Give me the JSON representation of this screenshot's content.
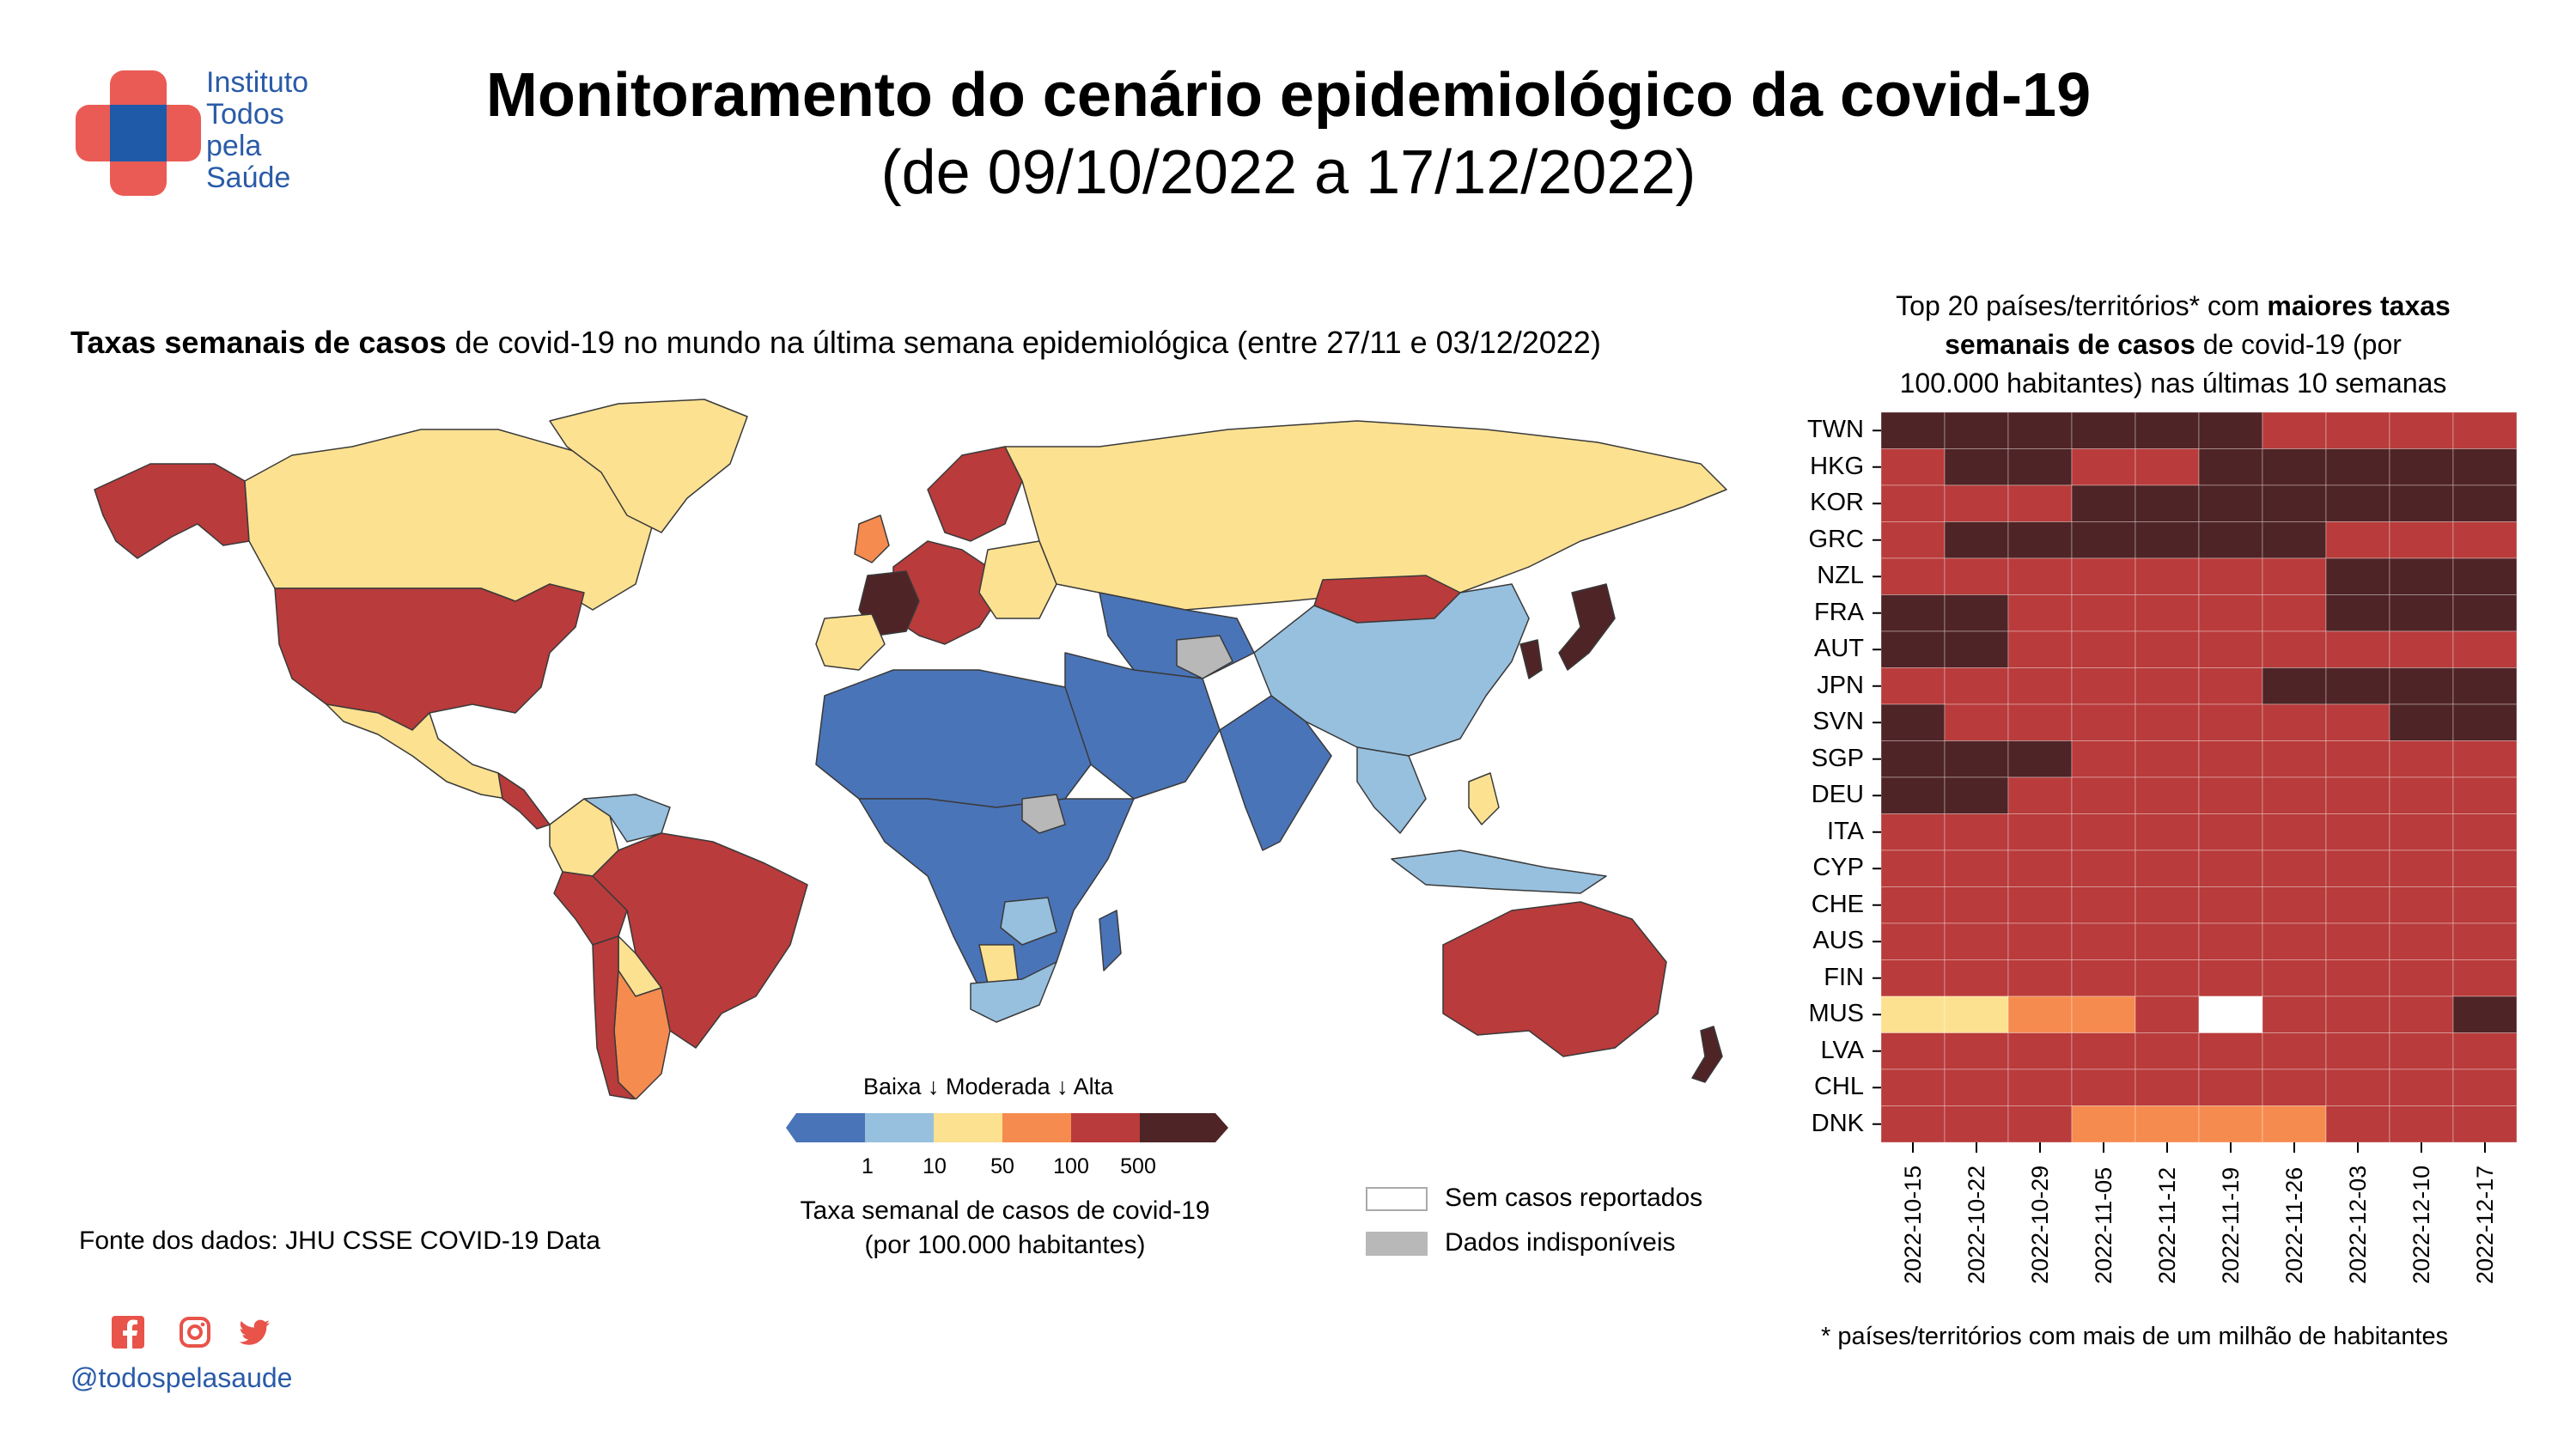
{
  "brand": {
    "logo_lines": [
      "Instituto",
      "Todos",
      "pela",
      "Saúde"
    ],
    "handle": "@todospelasaude",
    "social_icons": [
      "facebook-icon",
      "instagram-icon",
      "twitter-icon"
    ],
    "colors": {
      "logo_blue": "#1e5aa8",
      "logo_red": "#ea5b55",
      "handle": "#2a5ba8",
      "social": "#e8534a"
    }
  },
  "header": {
    "title": "Monitoramento do cenário epidemiológico da covid-19",
    "subtitle": "(de 09/10/2022 a 17/12/2022)"
  },
  "map": {
    "title_bold": "Taxas semanais de casos",
    "title_rest": " de covid-19 no mundo na última semana epidemiológica (entre 27/11 e 03/12/2022)"
  },
  "legend": {
    "categories": "Baixa ↓ Moderada ↓ Alta",
    "ticks": [
      "1",
      "10",
      "50",
      "100",
      "500"
    ],
    "caption_line1": "Taxa semanal de casos de covid-19",
    "caption_line2": "(por 100.000 habitantes)",
    "colors": [
      "#4a74b8",
      "#97c0df",
      "#fce191",
      "#f68b4f",
      "#b93b3b",
      "#4f2426"
    ],
    "no_cases": "Sem casos reportados",
    "unavailable": "Dados indisponíveis",
    "no_cases_color": "#ffffff",
    "unavailable_color": "#b8b8b8"
  },
  "source": "Fonte dos dados: JHU CSSE COVID-19 Data",
  "heatmap": {
    "title_l1_pre": "Top 20 países/territórios* com ",
    "title_l1_bold": "maiores taxas",
    "title_l2_bold": "semanais de casos",
    "title_l2_rest": " de covid-19 (por",
    "title_l3": "100.000 habitantes) nas últimas 10 semanas",
    "footnote": "* países/territórios com mais de um milhão de habitantes"
  },
  "chart_data": {
    "type": "heatmap",
    "x": [
      "2022-10-15",
      "2022-10-22",
      "2022-10-29",
      "2022-11-05",
      "2022-11-12",
      "2022-11-19",
      "2022-11-26",
      "2022-12-03",
      "2022-12-10",
      "2022-12-17"
    ],
    "y": [
      "TWN",
      "HKG",
      "KOR",
      "GRC",
      "NZL",
      "FRA",
      "AUT",
      "JPN",
      "SVN",
      "SGP",
      "DEU",
      "ITA",
      "CYP",
      "CHE",
      "AUS",
      "FIN",
      "MUS",
      "LVA",
      "CHL",
      "DNK"
    ],
    "category_scale": [
      "none",
      "1-10",
      "10-50",
      "50-100",
      "100-500",
      "500+"
    ],
    "category_colors": {
      "none": "#ffffff",
      "50-100": "#fce191",
      "100-500": "#f68b4f",
      "500+x": "",
      "500+": "#4f2426",
      "high": "#b93b3b"
    },
    "values": [
      [
        "500+",
        "500+",
        "500+",
        "500+",
        "500+",
        "500+",
        "100-500",
        "100-500",
        "100-500",
        "100-500"
      ],
      [
        "100-500",
        "500+",
        "500+",
        "100-500",
        "100-500",
        "500+",
        "500+",
        "500+",
        "500+",
        "500+"
      ],
      [
        "100-500",
        "100-500",
        "100-500",
        "500+",
        "500+",
        "500+",
        "500+",
        "500+",
        "500+",
        "500+"
      ],
      [
        "100-500",
        "500+",
        "500+",
        "500+",
        "500+",
        "500+",
        "500+",
        "100-500",
        "100-500",
        "100-500"
      ],
      [
        "100-500",
        "100-500",
        "100-500",
        "100-500",
        "100-500",
        "100-500",
        "100-500",
        "500+",
        "500+",
        "500+"
      ],
      [
        "500+",
        "500+",
        "100-500",
        "100-500",
        "100-500",
        "100-500",
        "100-500",
        "500+",
        "500+",
        "500+"
      ],
      [
        "500+",
        "500+",
        "100-500",
        "100-500",
        "100-500",
        "100-500",
        "100-500",
        "100-500",
        "100-500",
        "100-500"
      ],
      [
        "100-500",
        "100-500",
        "100-500",
        "100-500",
        "100-500",
        "100-500",
        "500+",
        "500+",
        "500+",
        "500+"
      ],
      [
        "500+",
        "100-500",
        "100-500",
        "100-500",
        "100-500",
        "100-500",
        "100-500",
        "100-500",
        "500+",
        "500+"
      ],
      [
        "500+",
        "500+",
        "500+",
        "100-500",
        "100-500",
        "100-500",
        "100-500",
        "100-500",
        "100-500",
        "100-500"
      ],
      [
        "500+",
        "500+",
        "100-500",
        "100-500",
        "100-500",
        "100-500",
        "100-500",
        "100-500",
        "100-500",
        "100-500"
      ],
      [
        "100-500",
        "100-500",
        "100-500",
        "100-500",
        "100-500",
        "100-500",
        "100-500",
        "100-500",
        "100-500",
        "100-500"
      ],
      [
        "100-500",
        "100-500",
        "100-500",
        "100-500",
        "100-500",
        "100-500",
        "100-500",
        "100-500",
        "100-500",
        "100-500"
      ],
      [
        "100-500",
        "100-500",
        "100-500",
        "100-500",
        "100-500",
        "100-500",
        "100-500",
        "100-500",
        "100-500",
        "100-500"
      ],
      [
        "100-500",
        "100-500",
        "100-500",
        "100-500",
        "100-500",
        "100-500",
        "100-500",
        "100-500",
        "100-500",
        "100-500"
      ],
      [
        "100-500",
        "100-500",
        "100-500",
        "100-500",
        "100-500",
        "100-500",
        "100-500",
        "100-500",
        "100-500",
        "100-500"
      ],
      [
        "10-50",
        "10-50",
        "50-100",
        "50-100",
        "100-500",
        "none",
        "100-500",
        "100-500",
        "100-500",
        "500+"
      ],
      [
        "100-500",
        "100-500",
        "100-500",
        "100-500",
        "100-500",
        "100-500",
        "100-500",
        "100-500",
        "100-500",
        "100-500"
      ],
      [
        "100-500",
        "100-500",
        "100-500",
        "100-500",
        "100-500",
        "100-500",
        "100-500",
        "100-500",
        "100-500",
        "100-500"
      ],
      [
        "100-500",
        "100-500",
        "100-500",
        "50-100",
        "50-100",
        "50-100",
        "50-100",
        "100-500",
        "100-500",
        "100-500"
      ]
    ]
  }
}
